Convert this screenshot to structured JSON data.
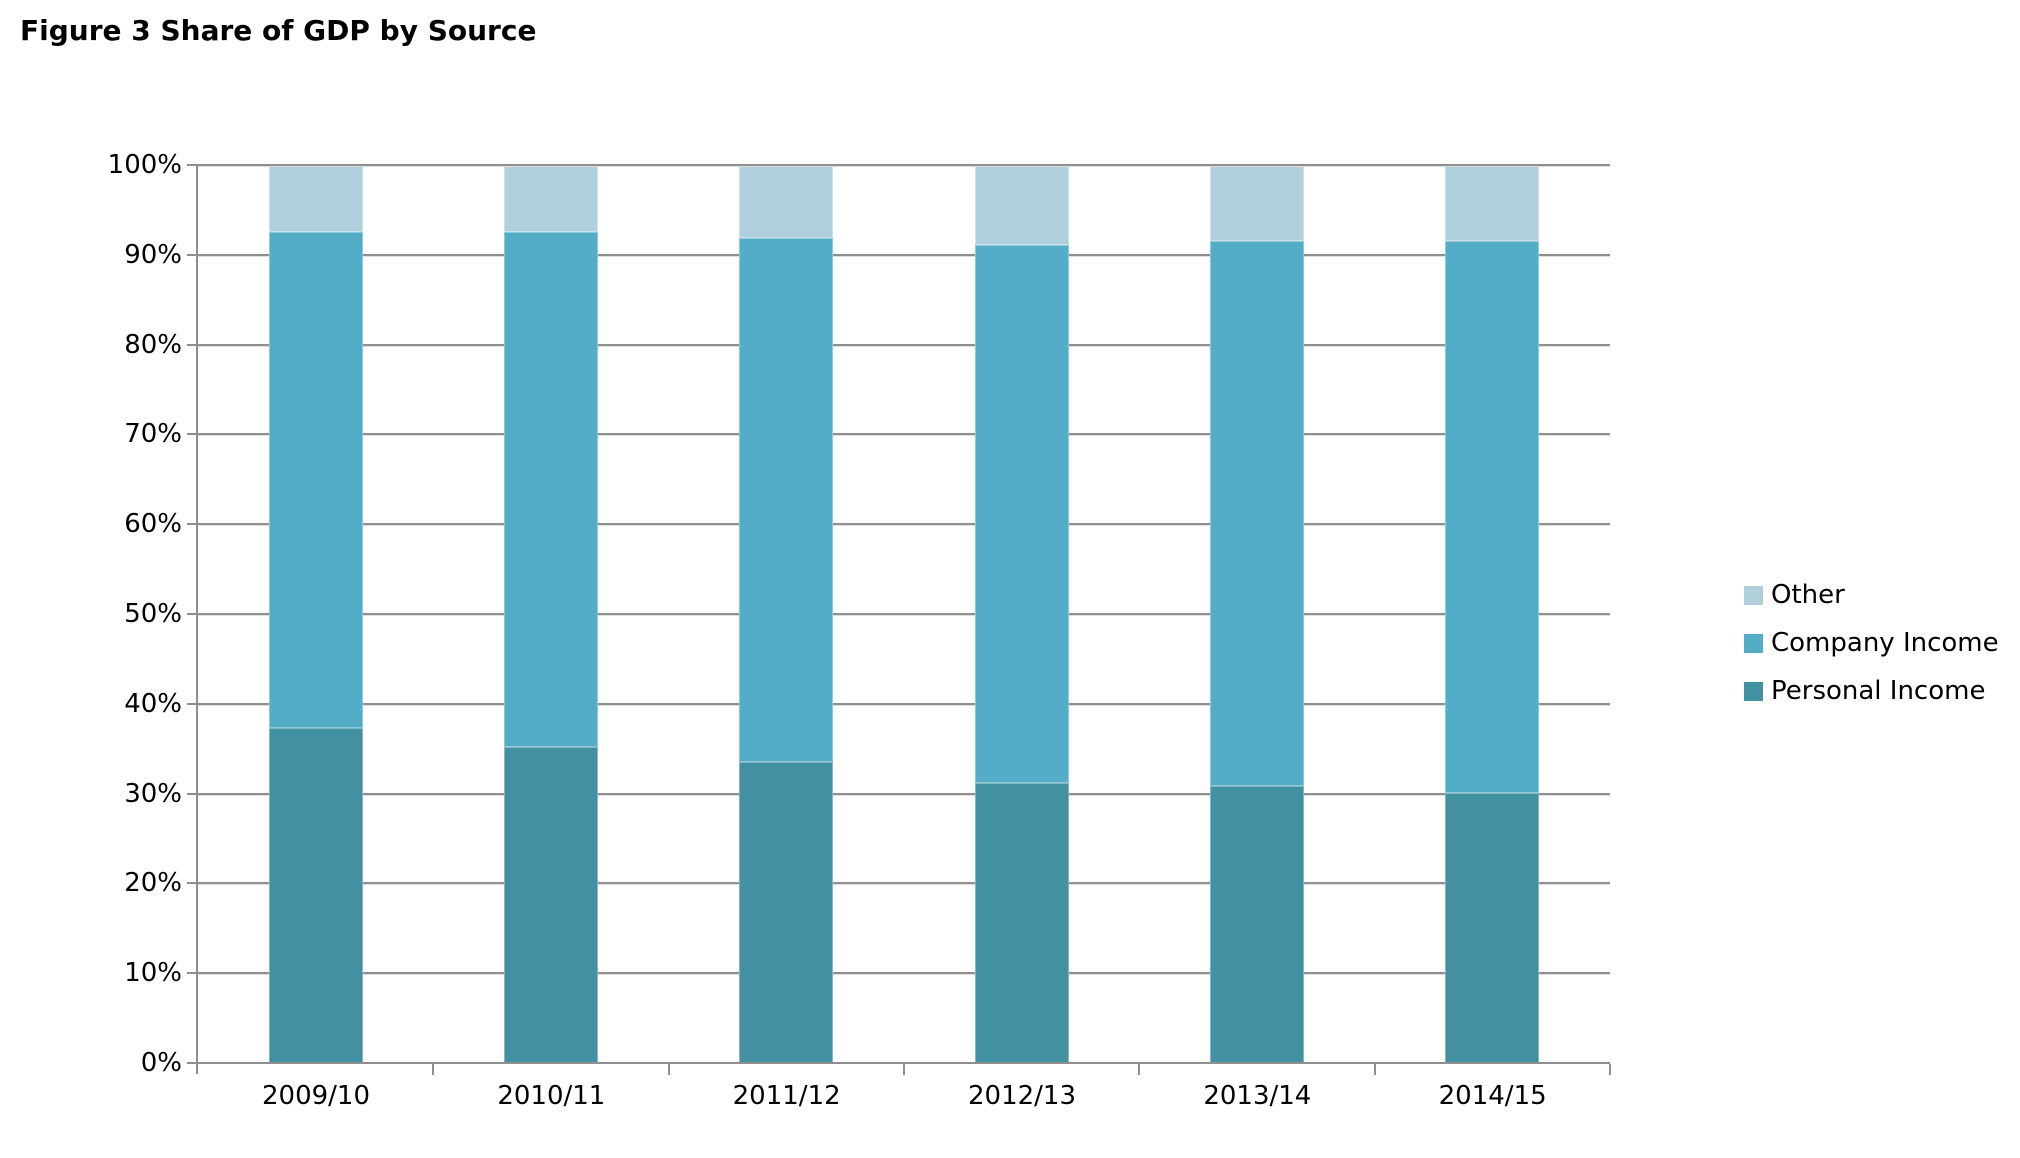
{
  "title": "Figure 3 Share of GDP by Source",
  "colors": {
    "grid": "#8F8F8F",
    "axis": "#8F8F8F",
    "text": "#000000",
    "background": "#FFFFFF",
    "personal_income": "#4291A2",
    "company_income": "#54ADC6",
    "other": "#AFCFDC"
  },
  "chart_data": {
    "type": "bar",
    "stacked": true,
    "title": "Figure 3 Share of GDP by Source",
    "categories": [
      "2009/10",
      "2010/11",
      "2011/12",
      "2012/13",
      "2013/14",
      "2014/15"
    ],
    "series": [
      {
        "name": "Personal Income",
        "color": "#4291A2",
        "values": [
          37.3,
          35.2,
          33.5,
          31.2,
          30.8,
          30.1
        ]
      },
      {
        "name": "Company Income",
        "color": "#54ADC6",
        "values": [
          55.2,
          57.3,
          58.4,
          59.9,
          60.7,
          61.4
        ]
      },
      {
        "name": "Other",
        "color": "#AFCFDC",
        "values": [
          7.5,
          7.5,
          8.1,
          8.9,
          8.5,
          8.5
        ]
      }
    ],
    "units": "percent of total",
    "xlabel": "",
    "ylabel": "",
    "ylim": [
      0,
      100
    ],
    "ytick_values": [
      0,
      10,
      20,
      30,
      40,
      50,
      60,
      70,
      80,
      90,
      100
    ],
    "ytick_labels": [
      "0%",
      "10%",
      "20%",
      "30%",
      "40%",
      "50%",
      "60%",
      "70%",
      "80%",
      "90%",
      "100%"
    ],
    "grid": "horizontal",
    "legend_position": "right",
    "legend_items": [
      {
        "label": "Other",
        "color": "#AFCFDC"
      },
      {
        "label": "Company Income",
        "color": "#54ADC6"
      },
      {
        "label": "Personal Income",
        "color": "#4291A2"
      }
    ]
  }
}
